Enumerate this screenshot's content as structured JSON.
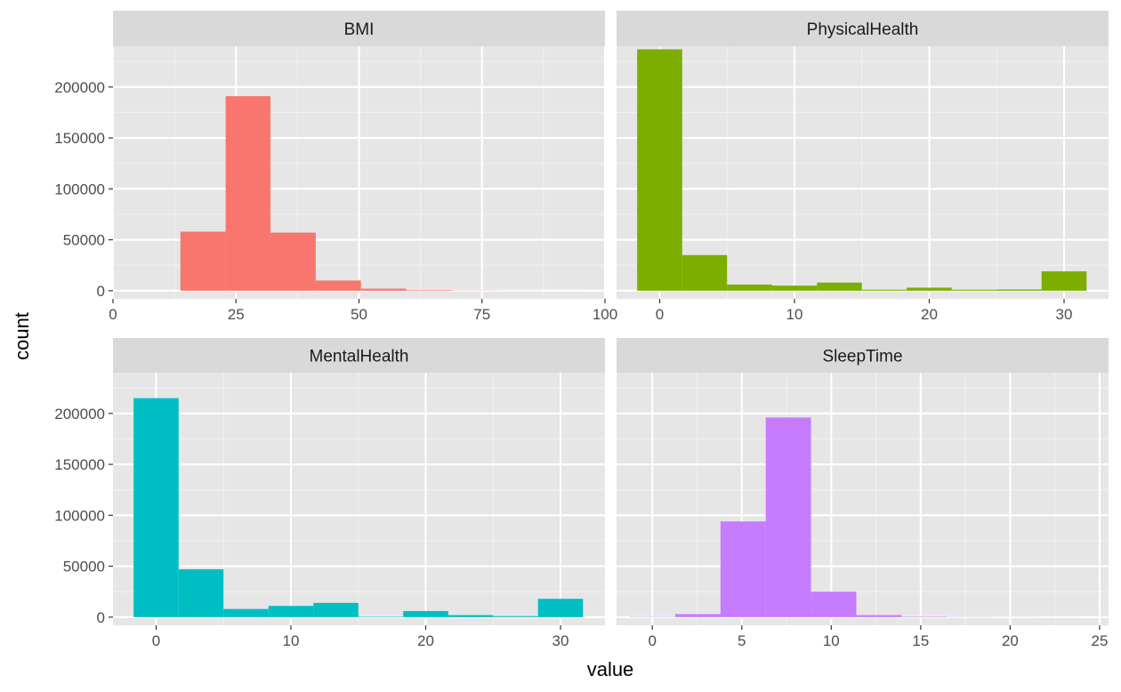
{
  "chart_data": {
    "type": "bar",
    "subtype": "faceted-histogram",
    "xlabel": "value",
    "ylabel": "count",
    "grid": true,
    "legend": "none",
    "facets": [
      {
        "name": "BMI",
        "color": "#F8766D",
        "xlim": [
          0,
          100
        ],
        "ylim": [
          -8000,
          240000
        ],
        "xticks": [
          "0",
          "25",
          "50",
          "75",
          "100"
        ],
        "yticks": [
          "0",
          "50000",
          "100000",
          "150000",
          "200000"
        ],
        "bins": [
          {
            "x0": 13.7,
            "x1": 22.9,
            "count": 58000
          },
          {
            "x0": 22.9,
            "x1": 32.0,
            "count": 191000
          },
          {
            "x0": 32.0,
            "x1": 41.2,
            "count": 57000
          },
          {
            "x0": 41.2,
            "x1": 50.4,
            "count": 10000
          },
          {
            "x0": 50.4,
            "x1": 59.6,
            "count": 2000
          },
          {
            "x0": 59.6,
            "x1": 68.8,
            "count": 600
          },
          {
            "x0": 68.8,
            "x1": 78.0,
            "count": 200
          },
          {
            "x0": 78.0,
            "x1": 87.2,
            "count": 80
          },
          {
            "x0": 87.2,
            "x1": 96.3,
            "count": 30
          }
        ]
      },
      {
        "name": "PhysicalHealth",
        "color": "#7CAE00",
        "xlim": [
          -3.2,
          33.3
        ],
        "ylim": [
          -8000,
          240000
        ],
        "xticks": [
          "0",
          "10",
          "20",
          "30"
        ],
        "yticks": [
          "0",
          "50000",
          "100000",
          "150000",
          "200000"
        ],
        "bins": [
          {
            "x0": -1.67,
            "x1": 1.67,
            "count": 237000
          },
          {
            "x0": 1.67,
            "x1": 5.0,
            "count": 35000
          },
          {
            "x0": 5.0,
            "x1": 8.33,
            "count": 6000
          },
          {
            "x0": 8.33,
            "x1": 11.67,
            "count": 5000
          },
          {
            "x0": 11.67,
            "x1": 15.0,
            "count": 8000
          },
          {
            "x0": 15.0,
            "x1": 18.33,
            "count": 1000
          },
          {
            "x0": 18.33,
            "x1": 21.67,
            "count": 3000
          },
          {
            "x0": 21.67,
            "x1": 25.0,
            "count": 1000
          },
          {
            "x0": 25.0,
            "x1": 28.33,
            "count": 1200
          },
          {
            "x0": 28.33,
            "x1": 31.67,
            "count": 19000
          }
        ]
      },
      {
        "name": "MentalHealth",
        "color": "#00BFC4",
        "xlim": [
          -3.2,
          33.3
        ],
        "ylim": [
          -8000,
          240000
        ],
        "xticks": [
          "0",
          "10",
          "20",
          "30"
        ],
        "yticks": [
          "0",
          "50000",
          "100000",
          "150000",
          "200000"
        ],
        "bins": [
          {
            "x0": -1.67,
            "x1": 1.67,
            "count": 215000
          },
          {
            "x0": 1.67,
            "x1": 5.0,
            "count": 47000
          },
          {
            "x0": 5.0,
            "x1": 8.33,
            "count": 8000
          },
          {
            "x0": 8.33,
            "x1": 11.67,
            "count": 11000
          },
          {
            "x0": 11.67,
            "x1": 15.0,
            "count": 14000
          },
          {
            "x0": 15.0,
            "x1": 18.33,
            "count": 500
          },
          {
            "x0": 18.33,
            "x1": 21.67,
            "count": 6000
          },
          {
            "x0": 21.67,
            "x1": 25.0,
            "count": 2000
          },
          {
            "x0": 25.0,
            "x1": 28.33,
            "count": 1000
          },
          {
            "x0": 28.33,
            "x1": 31.67,
            "count": 18000
          }
        ]
      },
      {
        "name": "SleepTime",
        "color": "#C77CFF",
        "xlim": [
          -2.0,
          25.5
        ],
        "ylim": [
          -8000,
          240000
        ],
        "xticks": [
          "0",
          "5",
          "10",
          "15",
          "20",
          "25"
        ],
        "yticks": [
          "0",
          "50000",
          "100000",
          "150000",
          "200000"
        ],
        "bins": [
          {
            "x0": -1.25,
            "x1": 1.28,
            "count": 300
          },
          {
            "x0": 1.28,
            "x1": 3.81,
            "count": 3000
          },
          {
            "x0": 3.81,
            "x1": 6.34,
            "count": 94000
          },
          {
            "x0": 6.34,
            "x1": 8.87,
            "count": 196000
          },
          {
            "x0": 8.87,
            "x1": 11.4,
            "count": 25000
          },
          {
            "x0": 11.4,
            "x1": 13.93,
            "count": 2000
          },
          {
            "x0": 13.93,
            "x1": 16.46,
            "count": 500
          },
          {
            "x0": 16.46,
            "x1": 18.99,
            "count": 200
          },
          {
            "x0": 18.99,
            "x1": 21.52,
            "count": 80
          },
          {
            "x0": 21.52,
            "x1": 24.05,
            "count": 30
          }
        ]
      }
    ]
  }
}
